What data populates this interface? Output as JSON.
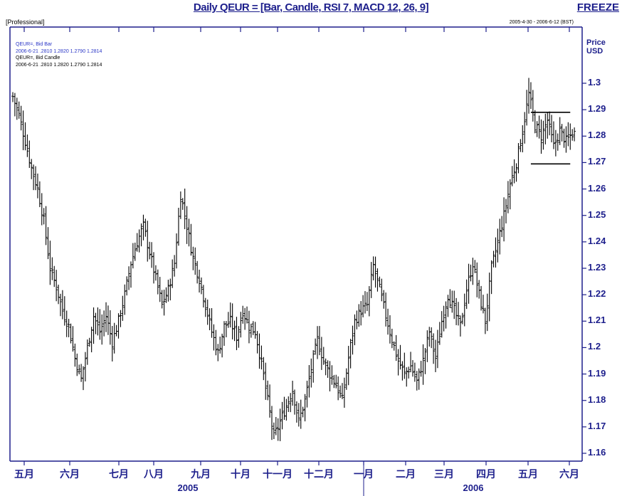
{
  "chart_data": {
    "type": "ohlc",
    "title": "Daily QEUR = [Bar, Candle, RSI 7, MACD 12, 26, 9]",
    "freeze_label": "FREEZE",
    "profile_label": "[Professional]",
    "date_range": "2005-4-30 - 2006-6-12 (BST)",
    "legend": [
      {
        "name": "QEUR=, Bid Bar",
        "values": "2006-6-21 .2810 1.2820 1.2790 1.2814",
        "color": "#2a36c6"
      },
      {
        "name": "QEUR=, Bid Candle",
        "values": "2006-6-21 .2810 1.2820 1.2790 1.2814",
        "color": "#000000"
      }
    ],
    "y_unit_line1": "Price",
    "y_unit_line2": "USD",
    "ylim": [
      1.155,
      1.305
    ],
    "y_ticks": [
      "1.3",
      "1.29",
      "1.28",
      "1.27",
      "1.26",
      "1.25",
      "1.24",
      "1.23",
      "1.22",
      "1.21",
      "1.2",
      "1.19",
      "1.18",
      "1.17",
      "1.16"
    ],
    "x_months": [
      "五月",
      "六月",
      "七月",
      "八月",
      "九月",
      "十月",
      "十一月",
      "十二月",
      "一月",
      "二月",
      "三月",
      "四月",
      "五月",
      "六月"
    ],
    "x_years": [
      "2005",
      "2006"
    ],
    "series_name": "QEUR=",
    "close_path": [
      [
        0,
        1.295
      ],
      [
        3,
        1.288
      ],
      [
        6,
        1.278
      ],
      [
        9,
        1.268
      ],
      [
        12,
        1.26
      ],
      [
        15,
        1.248
      ],
      [
        18,
        1.23
      ],
      [
        21,
        1.223
      ],
      [
        24,
        1.214
      ],
      [
        27,
        1.208
      ],
      [
        30,
        1.196
      ],
      [
        33,
        1.188
      ],
      [
        36,
        1.2
      ],
      [
        39,
        1.212
      ],
      [
        42,
        1.206
      ],
      [
        45,
        1.212
      ],
      [
        48,
        1.202
      ],
      [
        51,
        1.21
      ],
      [
        54,
        1.22
      ],
      [
        57,
        1.232
      ],
      [
        60,
        1.24
      ],
      [
        63,
        1.246
      ],
      [
        66,
        1.236
      ],
      [
        69,
        1.226
      ],
      [
        72,
        1.216
      ],
      [
        75,
        1.222
      ],
      [
        78,
        1.232
      ],
      [
        81,
        1.258
      ],
      [
        84,
        1.246
      ],
      [
        87,
        1.234
      ],
      [
        90,
        1.226
      ],
      [
        93,
        1.216
      ],
      [
        96,
        1.206
      ],
      [
        99,
        1.198
      ],
      [
        102,
        1.208
      ],
      [
        105,
        1.21
      ],
      [
        108,
        1.204
      ],
      [
        111,
        1.214
      ],
      [
        114,
        1.208
      ],
      [
        117,
        1.206
      ],
      [
        120,
        1.194
      ],
      [
        123,
        1.18
      ],
      [
        126,
        1.166
      ],
      [
        129,
        1.172
      ],
      [
        132,
        1.178
      ],
      [
        135,
        1.184
      ],
      [
        138,
        1.172
      ],
      [
        141,
        1.18
      ],
      [
        144,
        1.192
      ],
      [
        147,
        1.203
      ],
      [
        150,
        1.195
      ],
      [
        153,
        1.19
      ],
      [
        156,
        1.186
      ],
      [
        159,
        1.18
      ],
      [
        162,
        1.196
      ],
      [
        165,
        1.21
      ],
      [
        168,
        1.214
      ],
      [
        171,
        1.216
      ],
      [
        174,
        1.231
      ],
      [
        177,
        1.222
      ],
      [
        180,
        1.212
      ],
      [
        183,
        1.203
      ],
      [
        186,
        1.195
      ],
      [
        189,
        1.19
      ],
      [
        192,
        1.193
      ],
      [
        195,
        1.187
      ],
      [
        198,
        1.195
      ],
      [
        201,
        1.206
      ],
      [
        204,
        1.196
      ],
      [
        207,
        1.21
      ],
      [
        210,
        1.22
      ],
      [
        213,
        1.214
      ],
      [
        216,
        1.208
      ],
      [
        219,
        1.222
      ],
      [
        222,
        1.232
      ],
      [
        225,
        1.22
      ],
      [
        228,
        1.21
      ],
      [
        231,
        1.23
      ],
      [
        234,
        1.24
      ],
      [
        237,
        1.25
      ],
      [
        240,
        1.262
      ],
      [
        243,
        1.27
      ],
      [
        246,
        1.282
      ],
      [
        249,
        1.296
      ],
      [
        252,
        1.284
      ],
      [
        255,
        1.28
      ],
      [
        258,
        1.286
      ],
      [
        261,
        1.276
      ],
      [
        264,
        1.282
      ],
      [
        267,
        1.278
      ],
      [
        270,
        1.281
      ]
    ],
    "total_days": 272,
    "rectangle": {
      "top": 1.289,
      "bottom": 1.2695,
      "day_start": 250,
      "day_end": 269
    },
    "grid": false
  }
}
